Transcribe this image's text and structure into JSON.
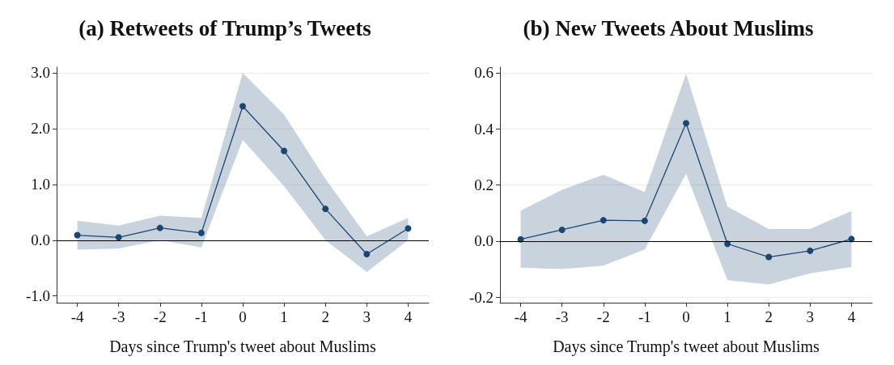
{
  "chart_data": [
    {
      "type": "line",
      "title": "(a) Retweets of Trump’s Tweets",
      "xlabel": "Days since Trump's tweet about Muslims",
      "x": [
        -4,
        -3,
        -2,
        -1,
        0,
        1,
        2,
        3,
        4
      ],
      "series": [
        {
          "color": "#1a4671",
          "values": [
            0.09,
            0.05,
            0.22,
            0.13,
            2.4,
            1.6,
            0.56,
            -0.25,
            0.21
          ],
          "lower": [
            -0.17,
            -0.15,
            0.0,
            -0.13,
            1.8,
            0.97,
            0.0,
            -0.57,
            0.0
          ],
          "upper": [
            0.35,
            0.26,
            0.44,
            0.4,
            3.0,
            2.25,
            1.1,
            0.07,
            0.4
          ]
        }
      ],
      "xlim": [
        -4.5,
        4.5
      ],
      "xticks": [
        -4,
        -3,
        -2,
        -1,
        0,
        1,
        2,
        3,
        4
      ],
      "ylim": [
        -1.12,
        3.1
      ],
      "yticks": [
        {
          "value": -1,
          "label": "-1.0"
        },
        {
          "value": 0,
          "label": "0.0"
        },
        {
          "value": 1,
          "label": "1.0"
        },
        {
          "value": 2,
          "label": "2.0"
        },
        {
          "value": 3,
          "label": "3.0"
        }
      ],
      "ref_lines": [
        {
          "axis": "y",
          "value": 0,
          "color": "#000000"
        }
      ],
      "grid": "y",
      "marker": "circle",
      "line_style": "solid"
    },
    {
      "type": "line",
      "title": "(b) New Tweets About Muslims",
      "xlabel": "Days since Trump's tweet about Muslims",
      "x": [
        -4,
        -3,
        -2,
        -1,
        0,
        1,
        2,
        3,
        4
      ],
      "series": [
        {
          "color": "#1a4671",
          "values": [
            0.006,
            0.04,
            0.074,
            0.072,
            0.42,
            -0.01,
            -0.057,
            -0.035,
            0.007
          ],
          "lower": [
            -0.095,
            -0.1,
            -0.088,
            -0.03,
            0.24,
            -0.14,
            -0.155,
            -0.115,
            -0.093
          ],
          "upper": [
            0.108,
            0.183,
            0.236,
            0.175,
            0.597,
            0.123,
            0.043,
            0.043,
            0.107
          ]
        }
      ],
      "xlim": [
        -4.5,
        4.5
      ],
      "xticks": [
        -4,
        -3,
        -2,
        -1,
        0,
        1,
        2,
        3,
        4
      ],
      "ylim": [
        -0.22,
        0.62
      ],
      "yticks": [
        {
          "value": -0.2,
          "label": "-0.2"
        },
        {
          "value": 0,
          "label": "0.0"
        },
        {
          "value": 0.2,
          "label": "0.2"
        },
        {
          "value": 0.4,
          "label": "0.4"
        },
        {
          "value": 0.6,
          "label": "0.6"
        }
      ],
      "ref_lines": [
        {
          "axis": "y",
          "value": 0,
          "color": "#000000"
        }
      ],
      "grid": "y",
      "marker": "circle",
      "line_style": "solid"
    }
  ]
}
